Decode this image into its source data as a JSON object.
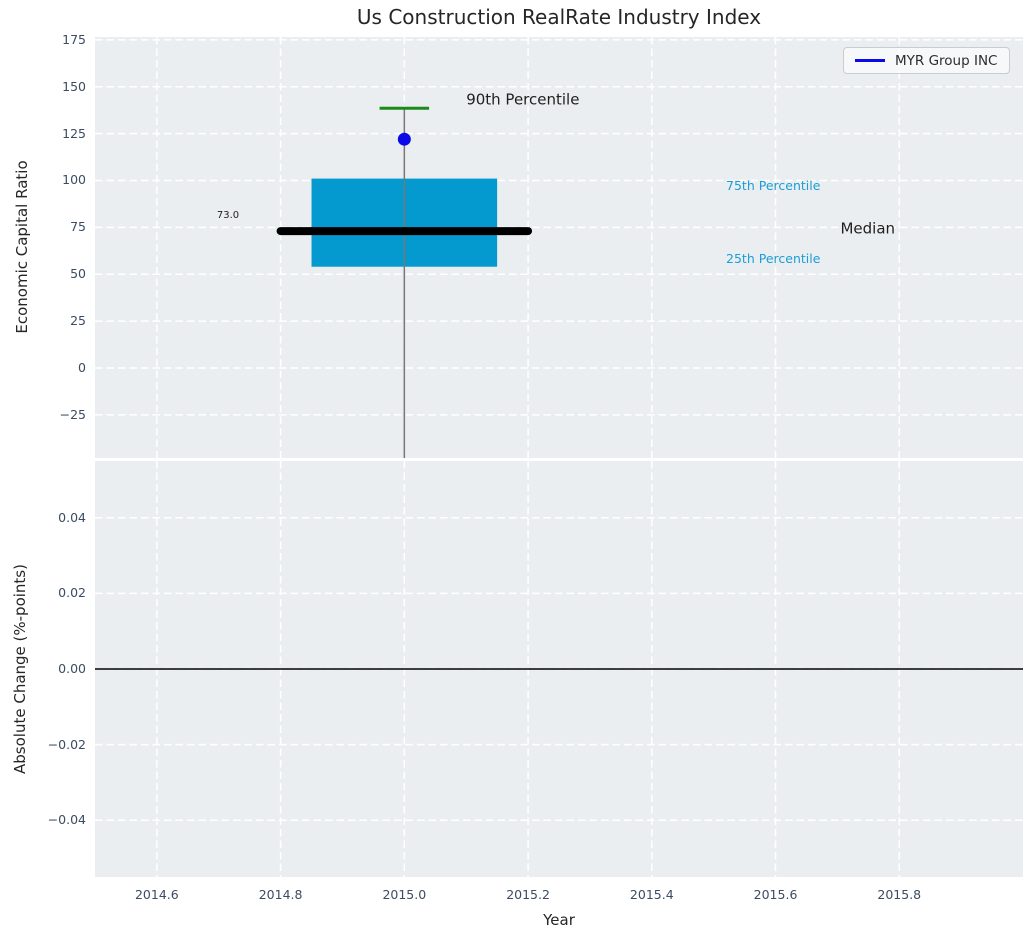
{
  "figure": {
    "title": "Us Construction RealRate Industry Index",
    "colors": {
      "background": "#ffffff",
      "axes_background": "#ebeef0",
      "grid": "#ffffff",
      "tick_label": "#3d4c63",
      "text": "#262626",
      "box_fill": "#0499cf",
      "percentile_text": "#1b9ed6",
      "median_line": "#000000",
      "whisker": "#777777",
      "cap_green": "#1a8a1a",
      "company_blue": "#0a0ae8",
      "zero_line": "#000000"
    }
  },
  "legend": {
    "label": "MYR Group INC"
  },
  "chart_data": [
    {
      "type": "box",
      "title": "Us Construction RealRate Industry Index",
      "ylabel": "Economic Capital Ratio",
      "xlabel": "",
      "xlim": [
        2014.5,
        2016.0
      ],
      "ylim": [
        -48,
        176.5
      ],
      "yticks": [
        175,
        150,
        125,
        100,
        75,
        50,
        25,
        0,
        -25
      ],
      "ytick_decimals": 0,
      "xticks": [
        2014.6,
        2014.8,
        2015.0,
        2015.2,
        2015.4,
        2015.6,
        2015.8
      ],
      "xtick_decimals": 1,
      "x_tick_labels_visible": false,
      "grid": true,
      "legend_position": "upper right",
      "box": {
        "series_name": "MYR Group INC",
        "x": 2015.0,
        "q1": 54,
        "median": 73,
        "median_label": "73.0",
        "q3": 101,
        "p90": 138.5,
        "company_value": 122,
        "box_half_width": 0.15,
        "median_half_width": 0.2,
        "cap_half_width": 0.04,
        "whisker_min": -48
      },
      "annotations": [
        {
          "text": "90th Percentile",
          "x": 2015.1,
          "y": 143,
          "size": 15,
          "color": "#1f1f1f",
          "ha": "left"
        },
        {
          "text": "75th Percentile",
          "x": 2015.52,
          "y": 97,
          "size": 12.5,
          "color": "#1b9ed6",
          "ha": "left"
        },
        {
          "text": "Median",
          "x": 2015.705,
          "y": 74,
          "size": 15,
          "color": "#1f1f1f",
          "ha": "left"
        },
        {
          "text": "25th Percentile",
          "x": 2015.52,
          "y": 58,
          "size": 12.5,
          "color": "#1b9ed6",
          "ha": "left"
        },
        {
          "text": "73.0",
          "x": 2014.715,
          "y": 81,
          "size": 10,
          "color": "#1f1f1f",
          "ha": "center"
        }
      ]
    },
    {
      "type": "line",
      "ylabel": "Absolute Change (%-points)",
      "xlabel": "Year",
      "xlim": [
        2014.5,
        2016.0
      ],
      "ylim": [
        -0.055,
        0.055
      ],
      "yticks": [
        0.04,
        0.02,
        0.0,
        -0.02,
        -0.04
      ],
      "ytick_decimals": 2,
      "xticks": [
        2014.6,
        2014.8,
        2015.0,
        2015.2,
        2015.4,
        2015.6,
        2015.8
      ],
      "xtick_decimals": 1,
      "x_tick_labels_visible": true,
      "grid": true,
      "zero_line": 0.0,
      "series": []
    }
  ]
}
